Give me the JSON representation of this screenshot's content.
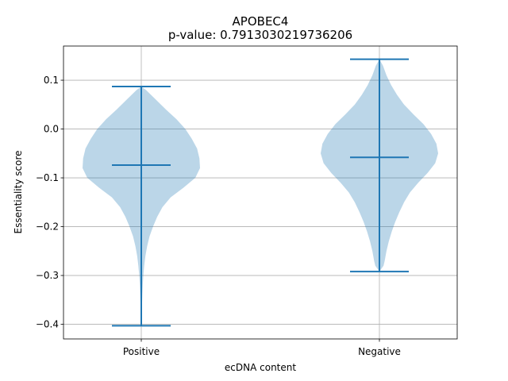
{
  "chart_data": {
    "type": "violin",
    "title": "APOBEC4",
    "subtitle": "p-value: 0.7913030219736206",
    "xlabel": "ecDNA content",
    "ylabel": "Essentiality score",
    "categories": [
      "Positive",
      "Negative"
    ],
    "ylim": [
      -0.43,
      0.17
    ],
    "yticks": [
      0.1,
      0.0,
      -0.1,
      -0.2,
      -0.3,
      -0.4
    ],
    "ytick_labels": [
      "0.1",
      "0.0",
      "−0.1",
      "−0.2",
      "−0.3",
      "−0.4"
    ],
    "grid": true,
    "violins": [
      {
        "category": "Positive",
        "min": -0.403,
        "max": 0.087,
        "median": -0.074,
        "density": [
          [
            0.087,
            0.0
          ],
          [
            0.08,
            0.08
          ],
          [
            0.06,
            0.25
          ],
          [
            0.04,
            0.42
          ],
          [
            0.02,
            0.6
          ],
          [
            0.0,
            0.75
          ],
          [
            -0.02,
            0.86
          ],
          [
            -0.04,
            0.95
          ],
          [
            -0.06,
            0.99
          ],
          [
            -0.08,
            1.0
          ],
          [
            -0.1,
            0.92
          ],
          [
            -0.12,
            0.72
          ],
          [
            -0.14,
            0.5
          ],
          [
            -0.16,
            0.36
          ],
          [
            -0.18,
            0.27
          ],
          [
            -0.2,
            0.2
          ],
          [
            -0.22,
            0.14
          ],
          [
            -0.24,
            0.1
          ],
          [
            -0.26,
            0.07
          ],
          [
            -0.28,
            0.05
          ],
          [
            -0.3,
            0.035
          ],
          [
            -0.32,
            0.025
          ],
          [
            -0.34,
            0.018
          ],
          [
            -0.36,
            0.012
          ],
          [
            -0.38,
            0.008
          ],
          [
            -0.403,
            0.0
          ]
        ]
      },
      {
        "category": "Negative",
        "min": -0.292,
        "max": 0.143,
        "median": -0.058,
        "density": [
          [
            0.143,
            0.0
          ],
          [
            0.13,
            0.06
          ],
          [
            0.11,
            0.12
          ],
          [
            0.09,
            0.2
          ],
          [
            0.07,
            0.3
          ],
          [
            0.05,
            0.42
          ],
          [
            0.03,
            0.58
          ],
          [
            0.01,
            0.75
          ],
          [
            -0.01,
            0.88
          ],
          [
            -0.03,
            0.97
          ],
          [
            -0.05,
            1.0
          ],
          [
            -0.07,
            0.95
          ],
          [
            -0.09,
            0.82
          ],
          [
            -0.11,
            0.66
          ],
          [
            -0.13,
            0.52
          ],
          [
            -0.15,
            0.42
          ],
          [
            -0.17,
            0.34
          ],
          [
            -0.19,
            0.27
          ],
          [
            -0.21,
            0.21
          ],
          [
            -0.23,
            0.16
          ],
          [
            -0.25,
            0.12
          ],
          [
            -0.27,
            0.09
          ],
          [
            -0.28,
            0.07
          ],
          [
            -0.292,
            0.0
          ]
        ]
      }
    ],
    "color": "#1f77b4"
  }
}
